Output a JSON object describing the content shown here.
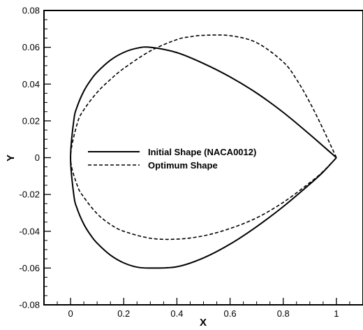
{
  "chart_data": {
    "type": "line",
    "xlabel": "X",
    "ylabel": "Y",
    "xlim": [
      -0.1,
      1.1
    ],
    "ylim": [
      -0.08,
      0.08
    ],
    "x_ticks": [
      0,
      0.2,
      0.4,
      0.6,
      0.8,
      1
    ],
    "x_tick_labels": [
      "0",
      "0.2",
      "0.4",
      "0.6",
      "0.8",
      "1"
    ],
    "y_ticks": [
      -0.08,
      -0.06,
      -0.04,
      -0.02,
      0,
      0.02,
      0.04,
      0.06,
      0.08
    ],
    "y_tick_labels": [
      "-0.08",
      "-0.06",
      "-0.04",
      "-0.02",
      "0",
      "0.02",
      "0.04",
      "0.06",
      "0.08"
    ],
    "grid": false,
    "legend_position": "center-left",
    "series": [
      {
        "name": "Initial Shape (NACA0012)",
        "line_style": "solid",
        "color": "#000000",
        "x": [
          1.0,
          0.95,
          0.9,
          0.8,
          0.7,
          0.6,
          0.5,
          0.4,
          0.3,
          0.25,
          0.2,
          0.15,
          0.1,
          0.075,
          0.05,
          0.025,
          0.0125,
          0.0,
          0.0125,
          0.025,
          0.05,
          0.075,
          0.1,
          0.15,
          0.2,
          0.25,
          0.3,
          0.4,
          0.5,
          0.6,
          0.7,
          0.8,
          0.9,
          0.95,
          1.0
        ],
        "y": [
          0.0,
          0.0063,
          0.0126,
          0.0246,
          0.0351,
          0.0439,
          0.0512,
          0.0571,
          0.06,
          0.0595,
          0.0572,
          0.053,
          0.0465,
          0.042,
          0.0362,
          0.0278,
          0.0206,
          0.0,
          -0.0206,
          -0.0278,
          -0.0362,
          -0.042,
          -0.0465,
          -0.053,
          -0.0572,
          -0.0595,
          -0.06,
          -0.0593,
          -0.0545,
          -0.047,
          -0.0375,
          -0.0266,
          -0.0144,
          -0.0078,
          0.0
        ]
      },
      {
        "name": "Optimum Shape",
        "line_style": "dashed",
        "color": "#000000",
        "x": [
          1.0,
          0.95,
          0.9,
          0.85,
          0.8,
          0.7,
          0.6,
          0.5,
          0.45,
          0.4,
          0.3,
          0.2,
          0.15,
          0.1,
          0.05,
          0.025,
          0.0,
          0.025,
          0.05,
          0.1,
          0.15,
          0.2,
          0.3,
          0.4,
          0.5,
          0.6,
          0.7,
          0.8,
          0.9,
          0.95,
          1.0
        ],
        "y": [
          0.0,
          0.0155,
          0.03,
          0.0425,
          0.052,
          0.0625,
          0.0663,
          0.0665,
          0.0657,
          0.0642,
          0.058,
          0.0485,
          0.0425,
          0.0355,
          0.026,
          0.0185,
          0.0,
          -0.015,
          -0.0215,
          -0.0305,
          -0.0363,
          -0.04,
          -0.0438,
          -0.0443,
          -0.0425,
          -0.0385,
          -0.0327,
          -0.0243,
          -0.0136,
          -0.0075,
          0.0
        ]
      }
    ]
  }
}
